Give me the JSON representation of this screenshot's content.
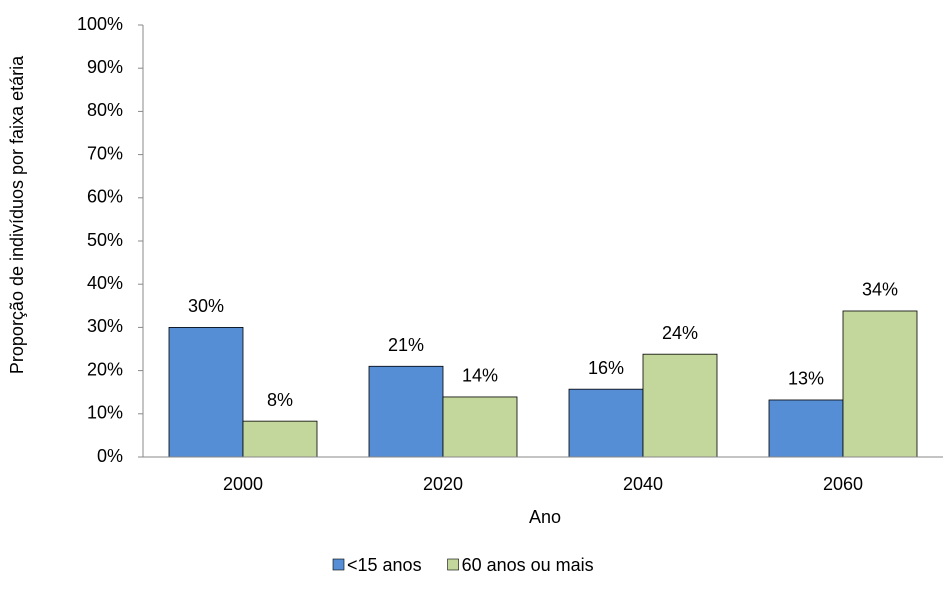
{
  "chart_data": {
    "type": "bar",
    "xlabel": "Ano",
    "ylabel": "Proporção de indivíduos por faixa etária",
    "categories": [
      "2000",
      "2020",
      "2040",
      "2060"
    ],
    "series": [
      {
        "name": "<15 anos",
        "color": "#558ed5",
        "values": [
          30,
          21,
          15.7,
          13.2
        ],
        "value_labels": [
          "30%",
          "21%",
          "16%",
          "13%"
        ]
      },
      {
        "name": "60 anos ou mais",
        "color": "#c3d69b",
        "values": [
          8.3,
          13.9,
          23.8,
          33.8
        ],
        "value_labels": [
          "8%",
          "14%",
          "24%",
          "34%"
        ]
      }
    ],
    "ylim": [
      0,
      100
    ],
    "yticks": [
      {
        "value": 0,
        "label": "0%"
      },
      {
        "value": 10,
        "label": "10%"
      },
      {
        "value": 20,
        "label": "20%"
      },
      {
        "value": 30,
        "label": "30%"
      },
      {
        "value": 40,
        "label": "40%"
      },
      {
        "value": 50,
        "label": "50%"
      },
      {
        "value": 60,
        "label": "60%"
      },
      {
        "value": 70,
        "label": "70%"
      },
      {
        "value": 80,
        "label": "80%"
      },
      {
        "value": 90,
        "label": "90%"
      },
      {
        "value": 100,
        "label": "100%"
      }
    ],
    "grid": false,
    "legend": "bottom"
  }
}
